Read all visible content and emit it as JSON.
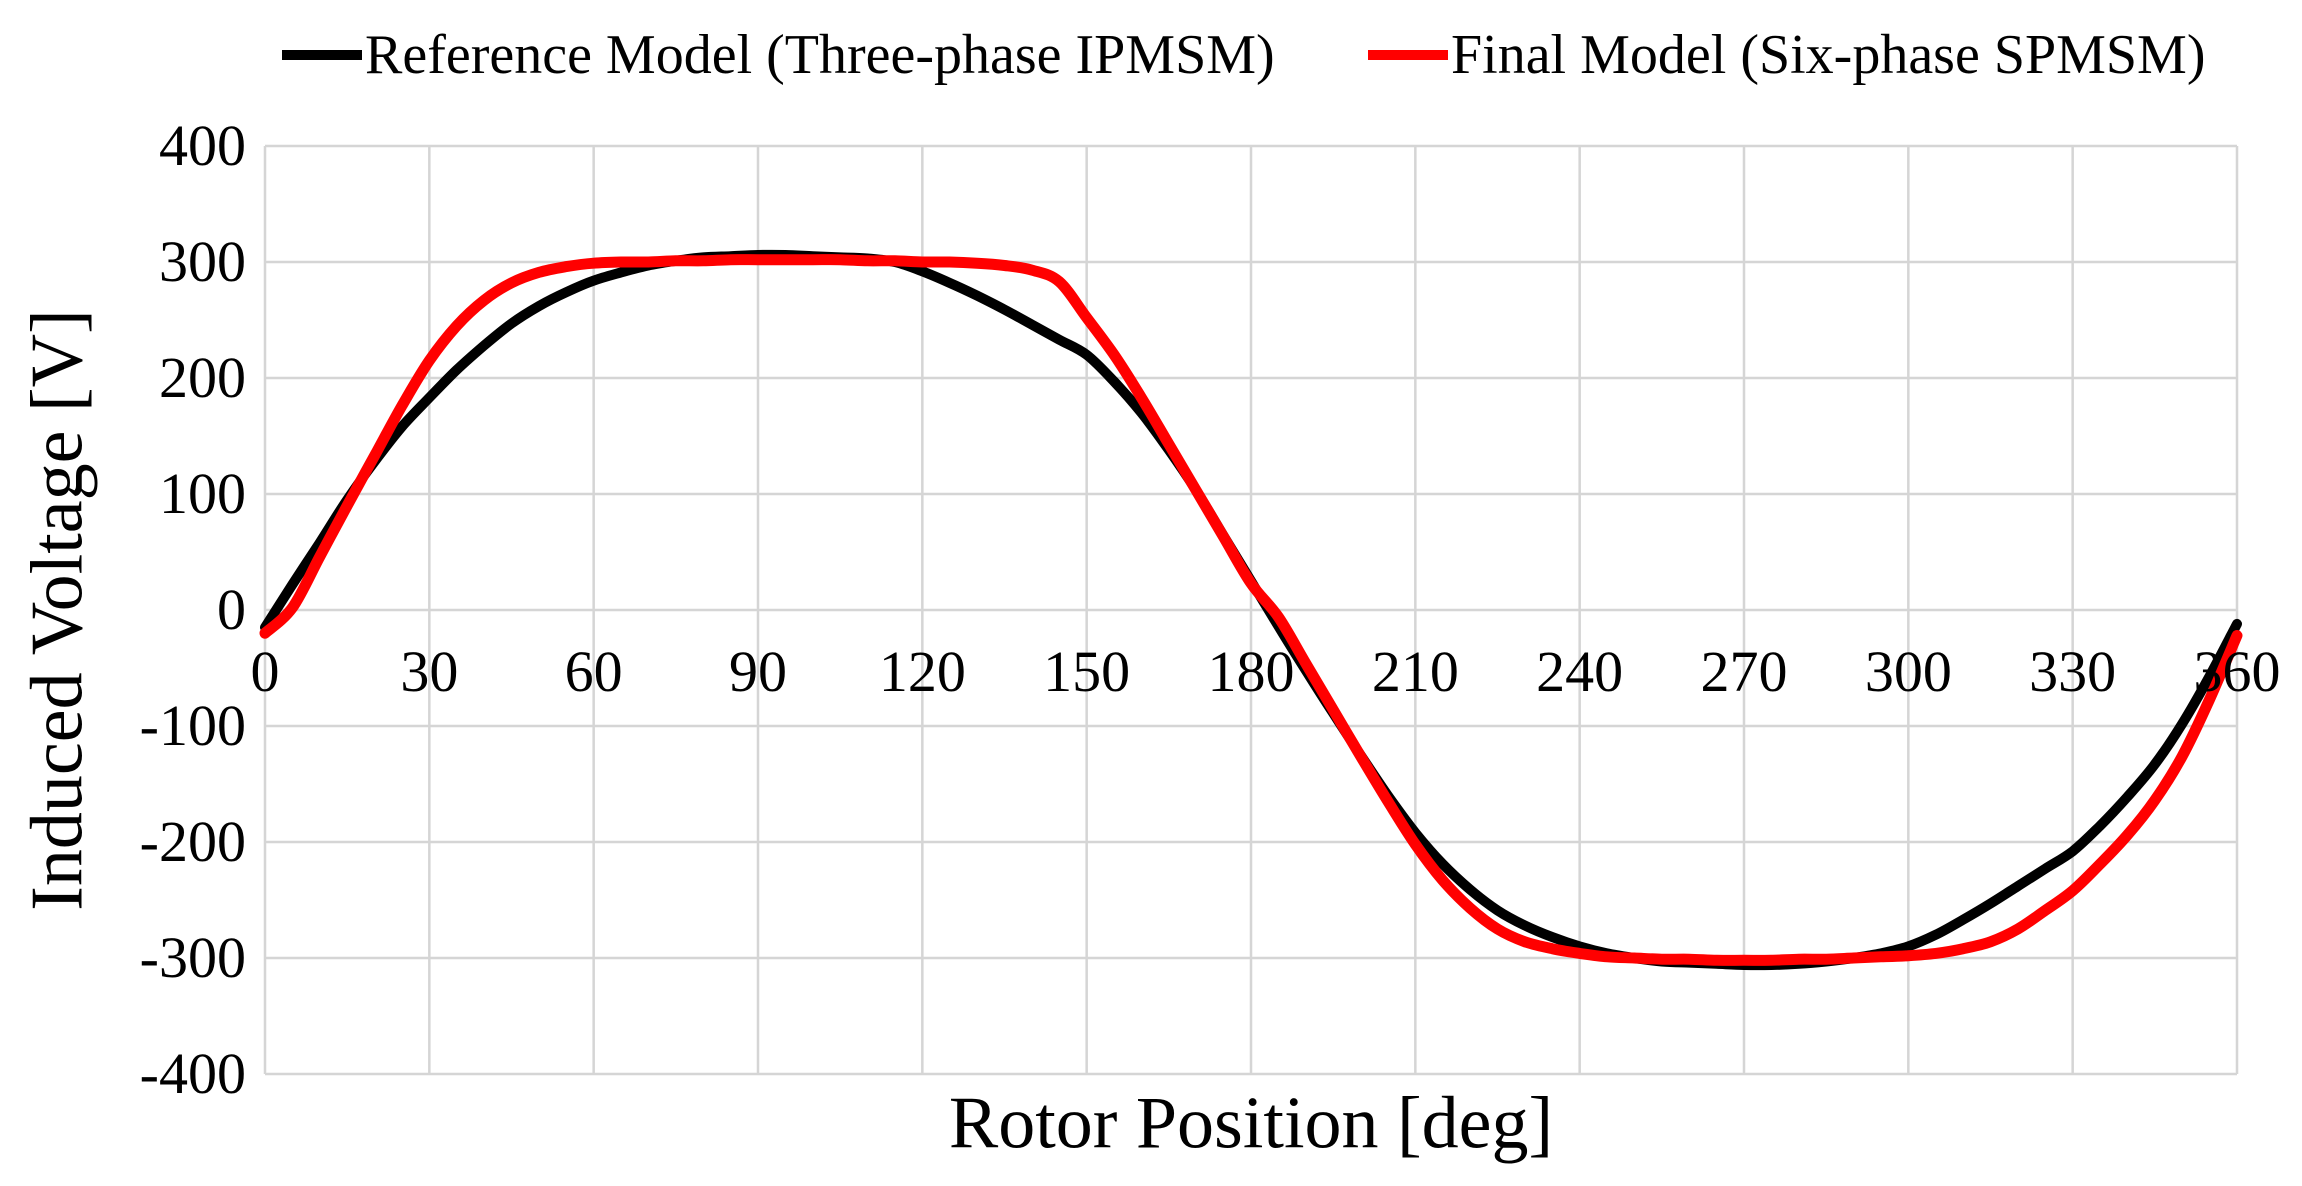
{
  "figure": {
    "background": "#FFFFFF",
    "text_color": "#000000"
  },
  "legend": {
    "position": "top",
    "items": [
      {
        "label": "Reference Model (Three-phase IPMSM)",
        "color": "#000000"
      },
      {
        "label": "Final Model (Six-phase SPMSM)",
        "color": "#FF0000"
      }
    ]
  },
  "chart_data": {
    "type": "line",
    "title": "",
    "xlabel": "Rotor Position [deg]",
    "ylabel": "Induced Voltage [V]",
    "xlim": [
      0,
      360
    ],
    "ylim": [
      -400,
      400
    ],
    "x_ticks": [
      0,
      30,
      60,
      90,
      120,
      150,
      180,
      210,
      240,
      270,
      300,
      330,
      360
    ],
    "y_ticks": [
      400,
      300,
      200,
      100,
      0,
      -100,
      -200,
      -300,
      -400
    ],
    "grid": "both",
    "grid_color": "#D5D5D5",
    "legend_position": "top",
    "series": [
      {
        "name": "Reference Model (Three-phase IPMSM)",
        "color": "#000000",
        "stroke_width": 10,
        "x": [
          0,
          5,
          10,
          15,
          20,
          25,
          30,
          35,
          40,
          45,
          50,
          55,
          60,
          65,
          70,
          75,
          80,
          85,
          90,
          95,
          100,
          105,
          110,
          115,
          120,
          125,
          130,
          135,
          140,
          145,
          150,
          155,
          160,
          165,
          170,
          175,
          180,
          185,
          190,
          195,
          200,
          205,
          210,
          215,
          220,
          225,
          230,
          235,
          240,
          245,
          250,
          255,
          260,
          265,
          270,
          275,
          280,
          285,
          290,
          295,
          300,
          305,
          310,
          315,
          320,
          325,
          330,
          335,
          340,
          345,
          350,
          355,
          360
        ],
        "y": [
          -15,
          22,
          58,
          95,
          128,
          158,
          183,
          207,
          228,
          247,
          262,
          274,
          284,
          291,
          297,
          301,
          304,
          305,
          306,
          306,
          305,
          304,
          303,
          300,
          292,
          282,
          271,
          259,
          246,
          233,
          220,
          197,
          170,
          138,
          103,
          64,
          25,
          -14,
          -52,
          -89,
          -125,
          -160,
          -192,
          -219,
          -241,
          -259,
          -272,
          -282,
          -290,
          -296,
          -300,
          -303,
          -304,
          -305,
          -306,
          -306,
          -305,
          -303,
          -300,
          -296,
          -290,
          -280,
          -267,
          -253,
          -238,
          -223,
          -208,
          -186,
          -161,
          -133,
          -98,
          -57,
          -12
        ]
      },
      {
        "name": "Final Model (Six-phase SPMSM)",
        "color": "#FF0000",
        "stroke_width": 11,
        "x": [
          0,
          5,
          10,
          15,
          20,
          25,
          30,
          35,
          40,
          45,
          50,
          55,
          60,
          65,
          70,
          75,
          80,
          85,
          90,
          95,
          100,
          105,
          110,
          115,
          120,
          125,
          130,
          135,
          140,
          145,
          150,
          155,
          160,
          165,
          170,
          175,
          180,
          185,
          190,
          195,
          200,
          205,
          210,
          215,
          220,
          225,
          230,
          235,
          240,
          245,
          250,
          255,
          260,
          265,
          270,
          275,
          280,
          285,
          290,
          295,
          300,
          305,
          310,
          315,
          320,
          325,
          330,
          335,
          340,
          345,
          350,
          355,
          360
        ],
        "y": [
          -20,
          2,
          46,
          90,
          133,
          176,
          215,
          245,
          267,
          282,
          291,
          296,
          299,
          300,
          300,
          301,
          301,
          302,
          302,
          302,
          302,
          302,
          301,
          301,
          300,
          300,
          299,
          297,
          293,
          283,
          252,
          220,
          183,
          143,
          103,
          63,
          23,
          -6,
          -46,
          -86,
          -126,
          -165,
          -202,
          -233,
          -257,
          -275,
          -286,
          -292,
          -296,
          -299,
          -300,
          -301,
          -301,
          -302,
          -302,
          -302,
          -301,
          -301,
          -300,
          -299,
          -298,
          -296,
          -292,
          -286,
          -275,
          -259,
          -242,
          -219,
          -194,
          -164,
          -126,
          -77,
          -22
        ]
      }
    ]
  }
}
